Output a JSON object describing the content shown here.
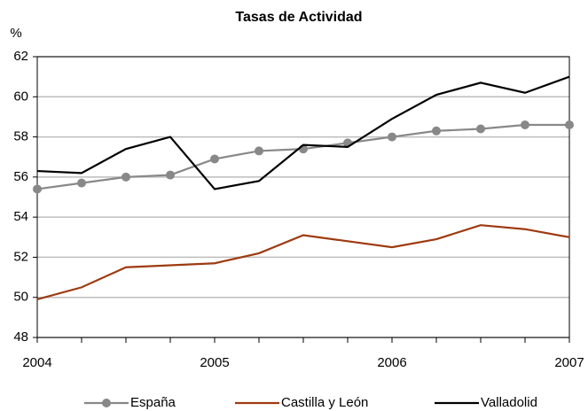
{
  "chart_data": {
    "type": "line",
    "title": "Tasas de Actividad",
    "y_label": "%",
    "x": [
      2004,
      2004.25,
      2004.5,
      2004.75,
      2005,
      2005.25,
      2005.5,
      2005.75,
      2006,
      2006.25,
      2006.5,
      2006.75,
      2007
    ],
    "series": [
      {
        "name": "España",
        "color": "#888888",
        "marker": "circle",
        "values": [
          55.4,
          55.7,
          56.0,
          56.1,
          56.9,
          57.3,
          57.4,
          57.7,
          58.0,
          58.3,
          58.4,
          58.6,
          58.6
        ]
      },
      {
        "name": "Castilla y León",
        "color": "#9e3a10",
        "values": [
          49.9,
          50.5,
          51.5,
          51.6,
          51.7,
          52.2,
          53.1,
          52.8,
          52.5,
          52.9,
          53.6,
          53.4,
          53.0
        ]
      },
      {
        "name": "Valladolid",
        "color": "#000000",
        "values": [
          56.3,
          56.2,
          57.4,
          58.0,
          55.4,
          55.8,
          57.6,
          57.5,
          58.9,
          60.1,
          60.7,
          60.2,
          61.0
        ]
      }
    ],
    "xlim": [
      2004,
      2007
    ],
    "xticks": [
      2004,
      2005,
      2006,
      2007
    ],
    "ylim": [
      48,
      62
    ],
    "yticks": [
      48,
      50,
      52,
      54,
      56,
      58,
      60,
      62
    ],
    "grid": true,
    "legend": "bottom"
  }
}
